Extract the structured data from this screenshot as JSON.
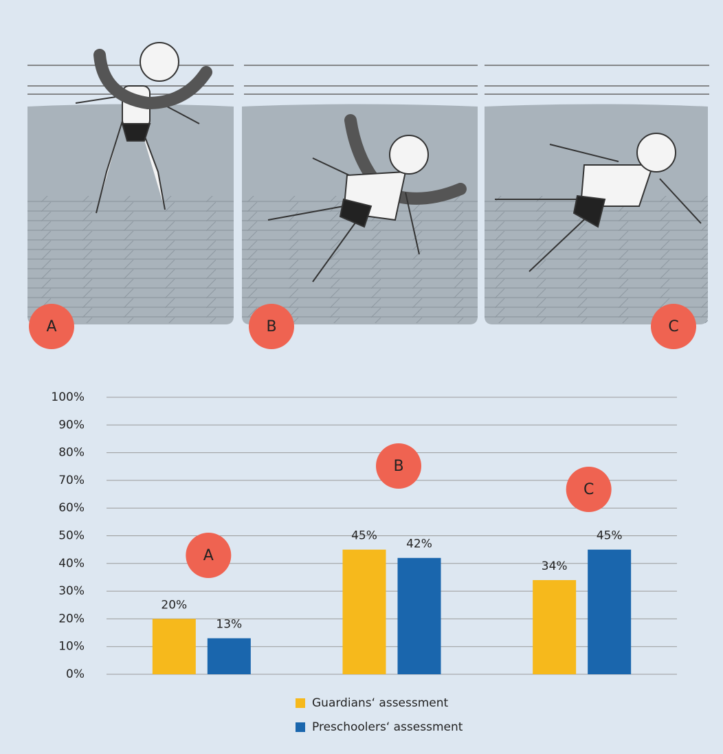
{
  "illustration": {
    "labels": [
      "A",
      "B",
      "C"
    ]
  },
  "chart_data": {
    "type": "bar",
    "categories": [
      "A",
      "B",
      "C"
    ],
    "series": [
      {
        "name": "Guardians‘ assessment",
        "color": "#f6b91c",
        "values": [
          20,
          45,
          34
        ],
        "value_labels": [
          "20%",
          "45%",
          "34%"
        ]
      },
      {
        "name": "Preschoolers‘ assessment",
        "color": "#1a66ad",
        "values": [
          13,
          42,
          45
        ],
        "value_labels": [
          "13%",
          "42%",
          "45%"
        ]
      }
    ],
    "ylim": [
      0,
      100
    ],
    "yticks": [
      {
        "value": 0,
        "label": "0%"
      },
      {
        "value": 10,
        "label": "10%"
      },
      {
        "value": 20,
        "label": "20%"
      },
      {
        "value": 30,
        "label": "30%"
      },
      {
        "value": 40,
        "label": "40%"
      },
      {
        "value": 50,
        "label": "50%"
      },
      {
        "value": 60,
        "label": "60%"
      },
      {
        "value": 70,
        "label": "70%"
      },
      {
        "value": 80,
        "label": "80%"
      },
      {
        "value": 90,
        "label": "90%"
      },
      {
        "value": 100,
        "label": "100%"
      }
    ],
    "grid": true
  }
}
